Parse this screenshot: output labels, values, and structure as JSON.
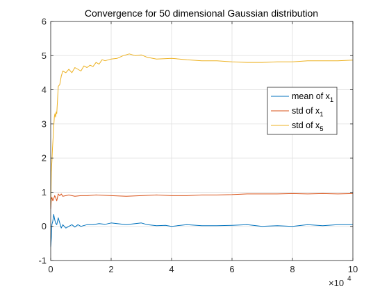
{
  "chart_data": {
    "type": "line",
    "title": "Convergence for 50 dimensional Gaussian distribution",
    "xlabel": "",
    "ylabel": "",
    "xlim": [
      0,
      100000
    ],
    "ylim": [
      -1,
      6
    ],
    "x_ticks": [
      0,
      20000,
      40000,
      60000,
      80000,
      100000
    ],
    "x_tick_labels": [
      "0",
      "2",
      "4",
      "6",
      "8",
      "10"
    ],
    "x_exponent_label": {
      "base": "×10",
      "exponent": "4"
    },
    "y_ticks": [
      -1,
      0,
      1,
      2,
      3,
      4,
      5,
      6
    ],
    "y_tick_labels": [
      "-1",
      "0",
      "1",
      "2",
      "3",
      "4",
      "5",
      "6"
    ],
    "grid": true,
    "legend_position": "center-right",
    "series": [
      {
        "name": "mean of x",
        "name_subscript": "1",
        "color": "#0072BD",
        "x": [
          0,
          200,
          400,
          700,
          1000,
          1300,
          1600,
          2000,
          2500,
          3000,
          3500,
          4000,
          5000,
          6000,
          7000,
          8000,
          9000,
          10000,
          12000,
          14000,
          16000,
          18000,
          20000,
          22000,
          25000,
          28000,
          30000,
          32000,
          35000,
          38000,
          40000,
          45000,
          50000,
          55000,
          60000,
          65000,
          70000,
          75000,
          80000,
          85000,
          90000,
          95000,
          100000
        ],
        "y": [
          -0.6,
          -0.35,
          0.05,
          0.15,
          0.35,
          0.2,
          0.1,
          0.05,
          0.25,
          0.1,
          -0.05,
          0.05,
          -0.05,
          0.0,
          0.05,
          -0.02,
          0.05,
          0.0,
          0.05,
          0.05,
          0.08,
          0.06,
          0.1,
          0.08,
          0.05,
          0.08,
          0.1,
          0.05,
          0.02,
          0.03,
          0.0,
          0.05,
          0.02,
          0.02,
          0.03,
          0.05,
          0.0,
          0.02,
          0.0,
          0.05,
          0.02,
          0.05,
          0.05
        ]
      },
      {
        "name": "std of x",
        "name_subscript": "1",
        "color": "#D95319",
        "x": [
          0,
          200,
          400,
          700,
          1000,
          1300,
          1600,
          2000,
          2500,
          3000,
          3500,
          4000,
          5000,
          6000,
          7000,
          8000,
          10000,
          12000,
          15000,
          20000,
          25000,
          30000,
          35000,
          40000,
          45000,
          50000,
          55000,
          60000,
          65000,
          70000,
          75000,
          80000,
          85000,
          90000,
          95000,
          100000
        ],
        "y": [
          0.5,
          0.8,
          0.85,
          0.75,
          0.8,
          0.9,
          0.85,
          0.75,
          0.95,
          0.9,
          0.95,
          0.88,
          0.9,
          0.92,
          0.9,
          0.88,
          0.9,
          0.9,
          0.92,
          0.9,
          0.88,
          0.9,
          0.92,
          0.9,
          0.9,
          0.92,
          0.92,
          0.93,
          0.95,
          0.95,
          0.95,
          0.96,
          0.95,
          0.96,
          0.95,
          0.96
        ]
      },
      {
        "name": "std of x",
        "name_subscript": "5",
        "color": "#EDB120",
        "x": [
          0,
          200,
          400,
          600,
          800,
          1000,
          1200,
          1400,
          1600,
          1800,
          2000,
          2500,
          3000,
          3500,
          4000,
          5000,
          6000,
          7000,
          8000,
          9000,
          10000,
          11000,
          12000,
          13000,
          14000,
          15000,
          16000,
          17000,
          18000,
          20000,
          22000,
          24000,
          26000,
          28000,
          30000,
          32000,
          35000,
          40000,
          45000,
          50000,
          55000,
          60000,
          65000,
          70000,
          75000,
          80000,
          85000,
          90000,
          95000,
          100000
        ],
        "y": [
          0.6,
          1.6,
          1.9,
          2.3,
          2.6,
          2.9,
          3.2,
          3.3,
          3.2,
          3.35,
          3.3,
          4.1,
          4.15,
          4.4,
          4.55,
          4.5,
          4.6,
          4.5,
          4.65,
          4.6,
          4.55,
          4.7,
          4.65,
          4.72,
          4.68,
          4.8,
          4.75,
          4.88,
          4.85,
          4.9,
          4.92,
          5.0,
          5.05,
          5.0,
          5.02,
          4.95,
          4.9,
          4.92,
          4.88,
          4.85,
          4.85,
          4.82,
          4.8,
          4.8,
          4.82,
          4.82,
          4.85,
          4.85,
          4.85,
          4.87
        ]
      }
    ]
  }
}
